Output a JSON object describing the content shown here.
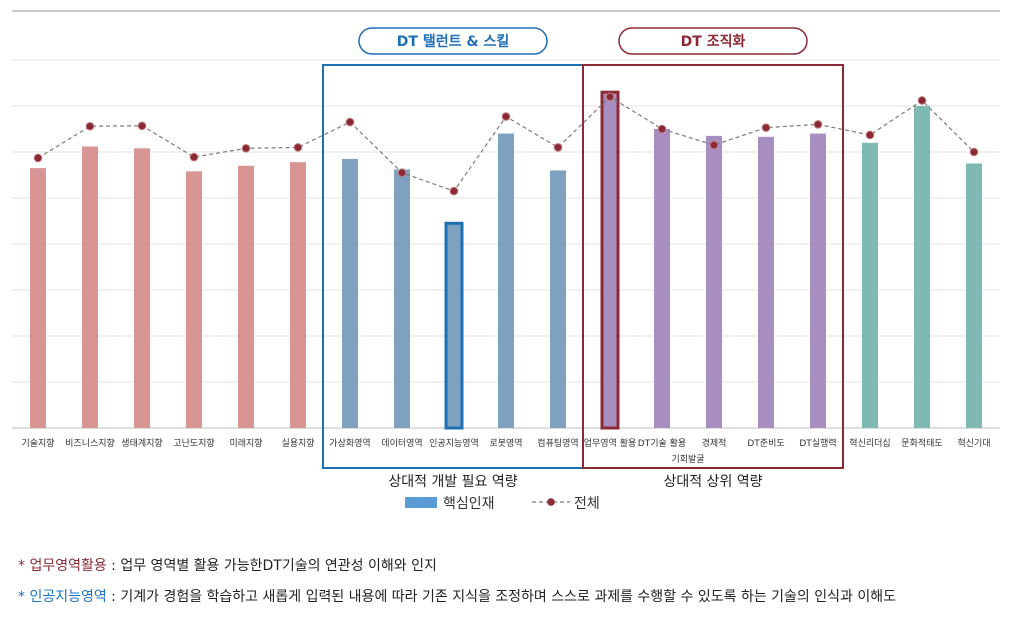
{
  "chart_data": {
    "type": "bar",
    "categories": [
      "기술지향",
      "비즈니스지향",
      "생태계지향",
      "고난도지향",
      "미래지향",
      "실용지향",
      "가상화영역",
      "데이터영역",
      "인공지능영역",
      "로봇영역",
      "컴퓨팅영역",
      "업무영역 활용",
      "DT기술 활용",
      "경제적",
      "DT준비도",
      "DT실행력",
      "혁신리더십",
      "문화적태도",
      "혁신기대"
    ],
    "sub_label": "기회발굴",
    "series": [
      {
        "name": "핵심인재",
        "type": "bar",
        "values": [
          56.5,
          61.2,
          60.8,
          55.8,
          57.0,
          57.8,
          58.5,
          56.2,
          44.5,
          64.0,
          56.0,
          73.0,
          65.0,
          63.5,
          63.3,
          64.0,
          62.0,
          70.0,
          57.5
        ]
      },
      {
        "name": "전체",
        "type": "line",
        "values": [
          58.7,
          65.6,
          65.7,
          58.9,
          60.8,
          61.0,
          66.5,
          55.5,
          51.5,
          67.7,
          61.0,
          72.0,
          65.0,
          61.5,
          65.3,
          66.0,
          63.7,
          71.2,
          60.0
        ]
      }
    ],
    "ylim": [
      0,
      80
    ],
    "groups": [
      {
        "label": "DT 탤런트 & 스킬",
        "caption": "상대적 개발 필요 역량"
      },
      {
        "label": "DT 조직화",
        "caption": "상대적 상위 역량"
      }
    ],
    "colors": {
      "red_bar": "#d99594",
      "blue_bar": "#7fa1c0",
      "purple_bar": "#a98ec1",
      "teal_bar": "#7fb9b3",
      "line": "#7a7a7a",
      "marker": "#8b2a35",
      "blue_box": "#1f6fb4",
      "red_box": "#8b2a35",
      "legend_bar": "#5b9bd5"
    }
  },
  "notes": [
    {
      "term": "업무영역활용",
      "text": " : 업무 영역별 활용 가능한DT기술의 연관성 이해와 인지"
    },
    {
      "term": "인공지능영역",
      "text": " : 기계가 경험을 학습하고 새롭게 입력된 내용에 따라 기존 지식을 조정하며 스스로 과제를 수행할 수 있도록 하는 기술의 인식과 이해도"
    }
  ],
  "star": "*"
}
